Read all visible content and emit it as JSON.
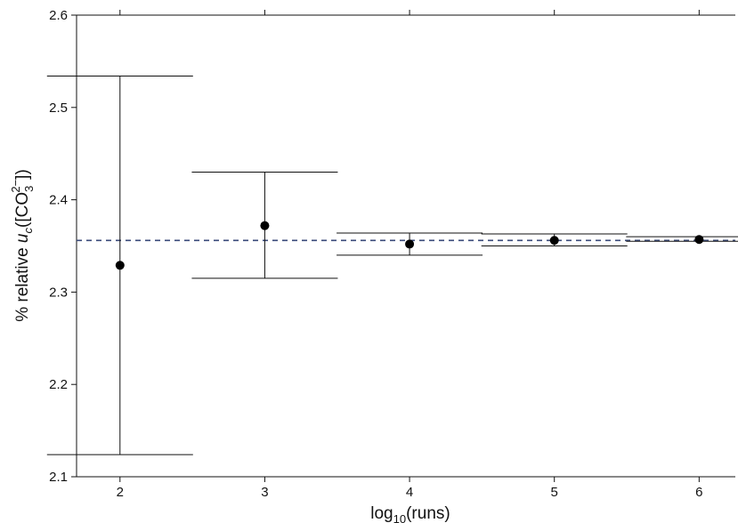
{
  "chart_data": {
    "type": "scatter",
    "xlabel": {
      "base": "log",
      "sub": "10",
      "rest": "(runs)"
    },
    "ylabel": {
      "prefix": "% relative ",
      "var": "u",
      "var_sub": "c",
      "open": "([CO",
      "co_sub": "3",
      "co_sup": "2−",
      "close": "])"
    },
    "xlim": [
      1.7,
      6.25
    ],
    "ylim": [
      2.1,
      2.6
    ],
    "xticks": [
      "2",
      "3",
      "4",
      "5",
      "6"
    ],
    "yticks": [
      "2.1",
      "2.2",
      "2.3",
      "2.4",
      "2.5",
      "2.6"
    ],
    "grid": false,
    "reference_line": {
      "y": 2.356,
      "style": "dashed",
      "color": "#3a4a7a"
    },
    "series": [
      {
        "marker": "circle",
        "color": "#000000",
        "points": [
          {
            "x": 2,
            "y": 2.329,
            "err_low": 2.124,
            "err_high": 2.534
          },
          {
            "x": 3,
            "y": 2.372,
            "err_low": 2.315,
            "err_high": 2.43
          },
          {
            "x": 4,
            "y": 2.352,
            "err_low": 2.34,
            "err_high": 2.364
          },
          {
            "x": 5,
            "y": 2.356,
            "err_low": 2.35,
            "err_high": 2.363
          },
          {
            "x": 6,
            "y": 2.357,
            "err_low": 2.355,
            "err_high": 2.36
          }
        ]
      }
    ]
  }
}
